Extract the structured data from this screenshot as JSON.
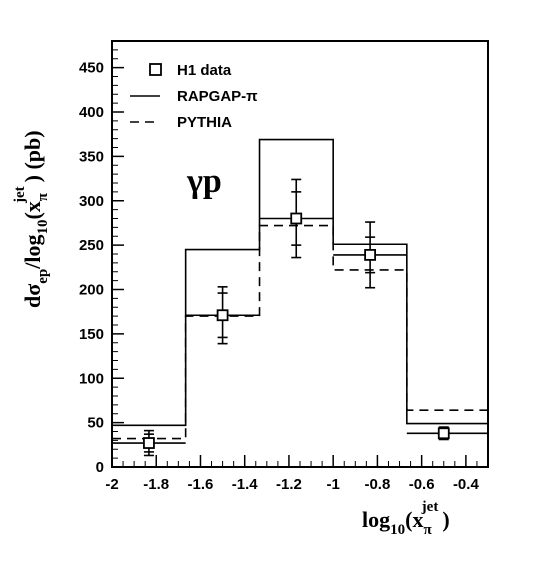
{
  "chart_data": {
    "type": "histogram",
    "panel_label": "γp",
    "xlabel": {
      "main": "log",
      "sub1": "10",
      "paren": "(x",
      "sub2": "π",
      "sup": "jet",
      "close": ")"
    },
    "ylabel": {
      "d": "d",
      "sigma": "σ",
      "sub_ep": "ep",
      "mid": "/log",
      "sub10": "10",
      "paren": "(x",
      "sub_pi": "π",
      "sup_jet": "jet",
      "close": ") (pb)"
    },
    "xlim": [
      -2,
      -0.3
    ],
    "ylim": [
      0,
      480
    ],
    "x_ticks": [
      -2,
      -1.8,
      -1.6,
      -1.4,
      -1.2,
      -1,
      -0.8,
      -0.6,
      -0.4
    ],
    "x_tick_labels": [
      "-2",
      "-1.8",
      "-1.6",
      "-1.4",
      "-1.2",
      "-1",
      "-0.8",
      "-0.6",
      "-0.4"
    ],
    "y_ticks": [
      0,
      50,
      100,
      150,
      200,
      250,
      300,
      350,
      400,
      450
    ],
    "y_tick_labels": [
      "0",
      "50",
      "100",
      "150",
      "200",
      "250",
      "300",
      "350",
      "400",
      "450"
    ],
    "bin_edges": [
      -2,
      -1.667,
      -1.333,
      -1.0,
      -0.667,
      -0.3
    ],
    "legend": {
      "position": "top-left",
      "entries": [
        {
          "label": "H1 data",
          "style": "open-square"
        },
        {
          "label": "RAPGAP-π",
          "style": "solid"
        },
        {
          "label": "PYTHIA",
          "style": "dashed"
        }
      ]
    },
    "series": [
      {
        "name": "H1 data",
        "style": "points",
        "x": [
          -1.833,
          -1.5,
          -1.167,
          -0.833,
          -0.5
        ],
        "y": [
          27,
          171,
          280,
          239,
          38
        ],
        "stat_err": [
          10,
          25,
          30,
          20,
          5
        ],
        "total_err": [
          14,
          32,
          44,
          37,
          7
        ]
      },
      {
        "name": "RAPGAP-π",
        "style": "solid",
        "values": [
          47,
          245,
          369,
          251,
          49
        ]
      },
      {
        "name": "PYTHIA",
        "style": "dashed",
        "values": [
          32,
          170,
          272,
          222,
          64
        ]
      }
    ]
  }
}
